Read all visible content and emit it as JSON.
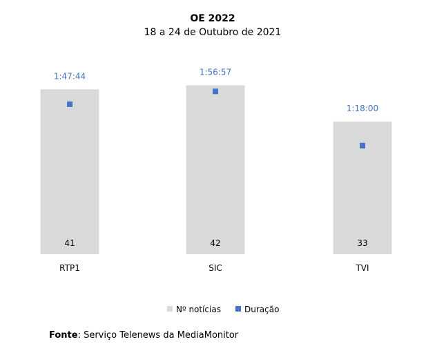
{
  "chart_data": {
    "type": "bar",
    "title": "OE 2022",
    "subtitle": "18 a 24 de Outubro de 2021",
    "categories": [
      "RTP1",
      "SIC",
      "TVI"
    ],
    "series": [
      {
        "name": "Nº notícias",
        "type": "bar",
        "axis": "primary",
        "color": "#d9d9d9",
        "values": [
          41,
          42,
          33
        ],
        "labels": [
          "41",
          "42",
          "33"
        ]
      },
      {
        "name": "Duração",
        "type": "scatter",
        "axis": "secondary",
        "color": "#4472c4",
        "values_seconds": [
          6464,
          7017,
          4680
        ],
        "labels": [
          "1:47:44",
          "1:56:57",
          "1:18:00"
        ]
      }
    ],
    "ylim": [
      0,
      45
    ],
    "y2lim_seconds": [
      0,
      7800
    ],
    "axes_visible": false,
    "grid": false,
    "legend": "bottom",
    "value_label_color": "#4472c4"
  },
  "source": {
    "label": "Fonte",
    "text": ": Serviço Telenews da MediaMonitor"
  }
}
